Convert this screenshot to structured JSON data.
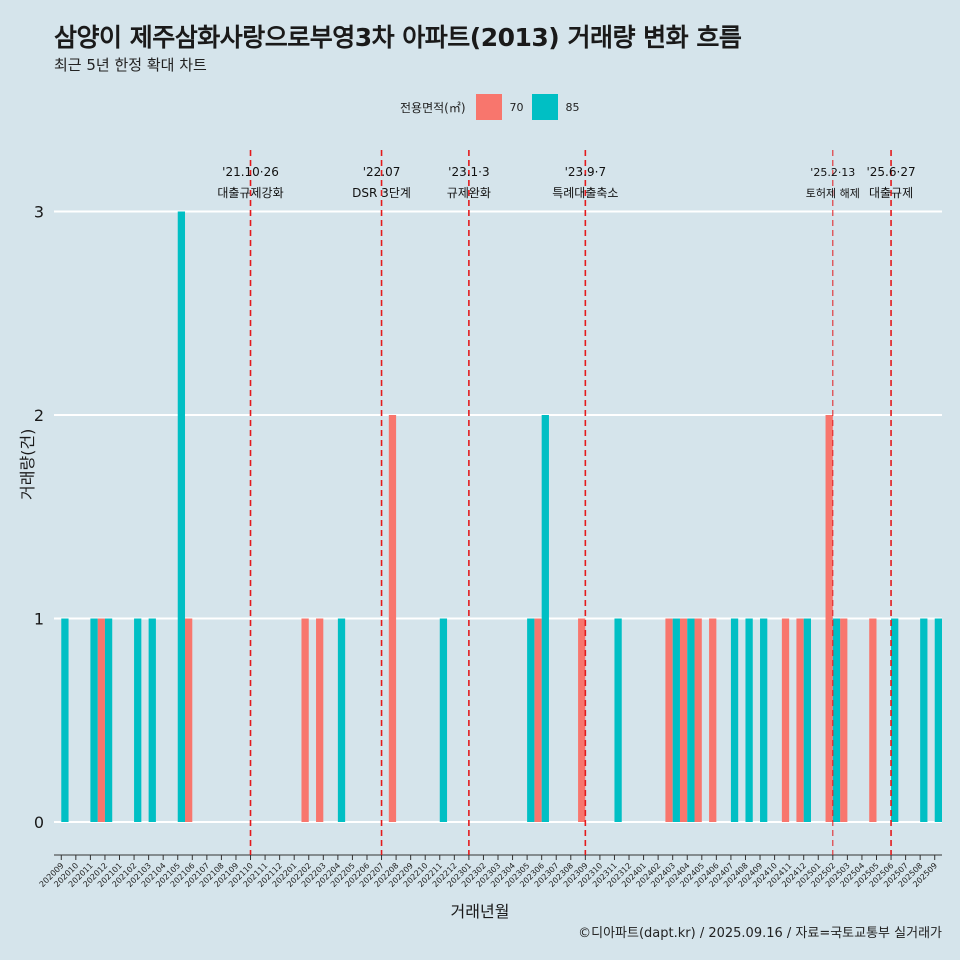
{
  "header": {
    "title": "삼양이 제주삼화사랑으로부영3차 아파트(2013) 거래량 변화 흐름",
    "subtitle": "최근 5년 한정 확대 차트"
  },
  "legend": {
    "title": "전용면적(㎡)",
    "items": [
      {
        "label": "70",
        "color": "#f8766d"
      },
      {
        "label": "85",
        "color": "#00bfc4"
      }
    ]
  },
  "footer": {
    "caption": "©디아파트(dapt.kr) / 2025.09.16 / 자료=국토교통부 실거래가"
  },
  "chart_data": {
    "type": "bar",
    "xlabel": "거래년월",
    "ylabel": "거래량(건)",
    "ylim": [
      0,
      3
    ],
    "yticks": [
      0,
      1,
      2,
      3
    ],
    "grid": true,
    "legend_position": "top",
    "categories": [
      "202009",
      "202010",
      "202011",
      "202012",
      "202101",
      "202102",
      "202103",
      "202104",
      "202105",
      "202106",
      "202107",
      "202108",
      "202109",
      "202110",
      "202111",
      "202112",
      "202201",
      "202202",
      "202203",
      "202204",
      "202205",
      "202206",
      "202207",
      "202208",
      "202209",
      "202210",
      "202211",
      "202212",
      "202301",
      "202302",
      "202303",
      "202304",
      "202305",
      "202306",
      "202307",
      "202308",
      "202309",
      "202310",
      "202311",
      "202312",
      "202401",
      "202402",
      "202403",
      "202404",
      "202405",
      "202406",
      "202407",
      "202408",
      "202409",
      "202410",
      "202411",
      "202412",
      "202501",
      "202502",
      "202503",
      "202504",
      "202505",
      "202506",
      "202507",
      "202508",
      "202509"
    ],
    "series": [
      {
        "name": "70",
        "color": "#f8766d",
        "values": [
          0,
          0,
          0,
          1,
          0,
          0,
          0,
          0,
          0,
          1,
          0,
          0,
          0,
          0,
          0,
          0,
          0,
          1,
          1,
          0,
          0,
          0,
          0,
          2,
          0,
          0,
          0,
          0,
          0,
          0,
          0,
          0,
          0,
          1,
          0,
          0,
          1,
          0,
          0,
          0,
          0,
          0,
          1,
          1,
          1,
          1,
          0,
          0,
          0,
          0,
          1,
          1,
          0,
          2,
          1,
          0,
          1,
          0,
          0,
          0,
          0
        ]
      },
      {
        "name": "85",
        "color": "#00bfc4",
        "values": [
          1,
          0,
          1,
          1,
          0,
          1,
          1,
          0,
          3,
          0,
          0,
          0,
          0,
          0,
          0,
          0,
          0,
          0,
          0,
          1,
          0,
          0,
          0,
          0,
          0,
          0,
          1,
          0,
          0,
          0,
          0,
          0,
          1,
          2,
          0,
          0,
          0,
          0,
          1,
          0,
          0,
          0,
          1,
          1,
          0,
          0,
          1,
          1,
          1,
          0,
          0,
          1,
          0,
          1,
          0,
          0,
          0,
          1,
          0,
          1,
          1
        ]
      }
    ],
    "annotations": [
      {
        "category": "202110",
        "date": "'21.10·26",
        "label": "대출규제강화"
      },
      {
        "category": "202207",
        "date": "'22.07",
        "label": "DSR 3단계"
      },
      {
        "category": "202301",
        "date": "'23.1·3",
        "label": "규제완화"
      },
      {
        "category": "202309",
        "date": "'23.9·7",
        "label": "특례대출축소"
      },
      {
        "category": "202502",
        "date": "'25.2·13",
        "label": "토허제 해제"
      },
      {
        "category": "202506",
        "date": "'25.6·27",
        "label": "대출규제"
      }
    ]
  }
}
